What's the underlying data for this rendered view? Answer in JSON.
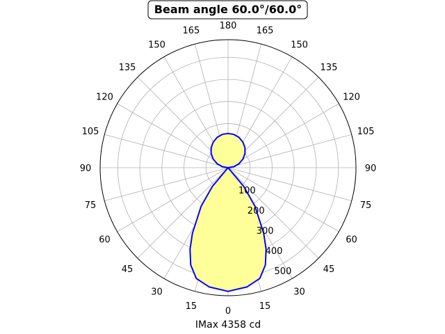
{
  "chart_data": {
    "type": "polar-line",
    "title": "Beam angle 60.0°/60.0°",
    "xlabel": "IMax 4358 cd",
    "theta_zero": "bottom",
    "theta_tick_labels": [
      "0",
      "15",
      "30",
      "45",
      "60",
      "75",
      "90",
      "105",
      "120",
      "135",
      "150",
      "165",
      "180"
    ],
    "radial_ticks": [
      100,
      200,
      300,
      400,
      500
    ],
    "rlim": [
      0,
      580
    ],
    "grid": true,
    "fill_color": "#ffff99",
    "line_color": "#0000ff",
    "series": [
      {
        "theta": [
          0,
          9,
          16,
          21,
          25,
          28.5,
          35,
          40,
          45
        ],
        "r": [
          560,
          547,
          522,
          472,
          408,
          339,
          212,
          111,
          0
        ]
      },
      {
        "theta": [
          90,
          100,
          110,
          120,
          130,
          140,
          150,
          160,
          170,
          180
        ],
        "r": [
          0,
          27,
          53,
          78,
          100,
          119,
          134,
          146,
          153,
          155
        ]
      }
    ]
  }
}
